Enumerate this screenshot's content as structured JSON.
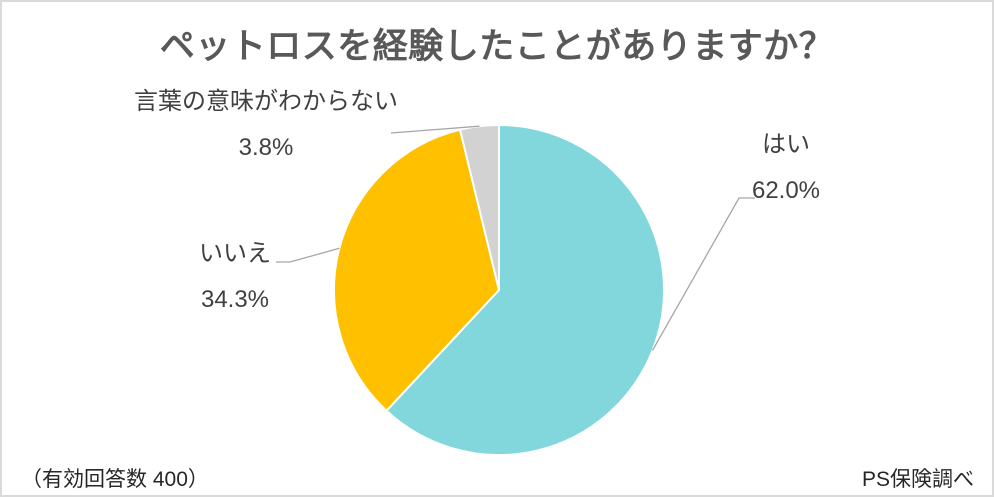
{
  "page": {
    "footer_left": "（有効回答数 400）",
    "footer_right": "PS保険調べ"
  },
  "chart_data": {
    "type": "pie",
    "title": "ペットロスを経験したことがありますか？",
    "categories": [
      "はい",
      "いいえ",
      "言葉の意味がわからない"
    ],
    "values": [
      62.0,
      34.3,
      3.8
    ],
    "value_labels": [
      "62.0%",
      "34.3%",
      "3.8%"
    ],
    "colors": [
      "#82D7DC",
      "#FFC000",
      "#D2D2D2"
    ],
    "start_angle_deg": 0,
    "direction": "clockwise",
    "slice_border_color": "#FFFFFF",
    "leader_line_color": "#A6A6A6",
    "title_color": "#595959",
    "label_color": "#404040",
    "legend": "none",
    "labels_position": "outside-with-leader-lines"
  }
}
